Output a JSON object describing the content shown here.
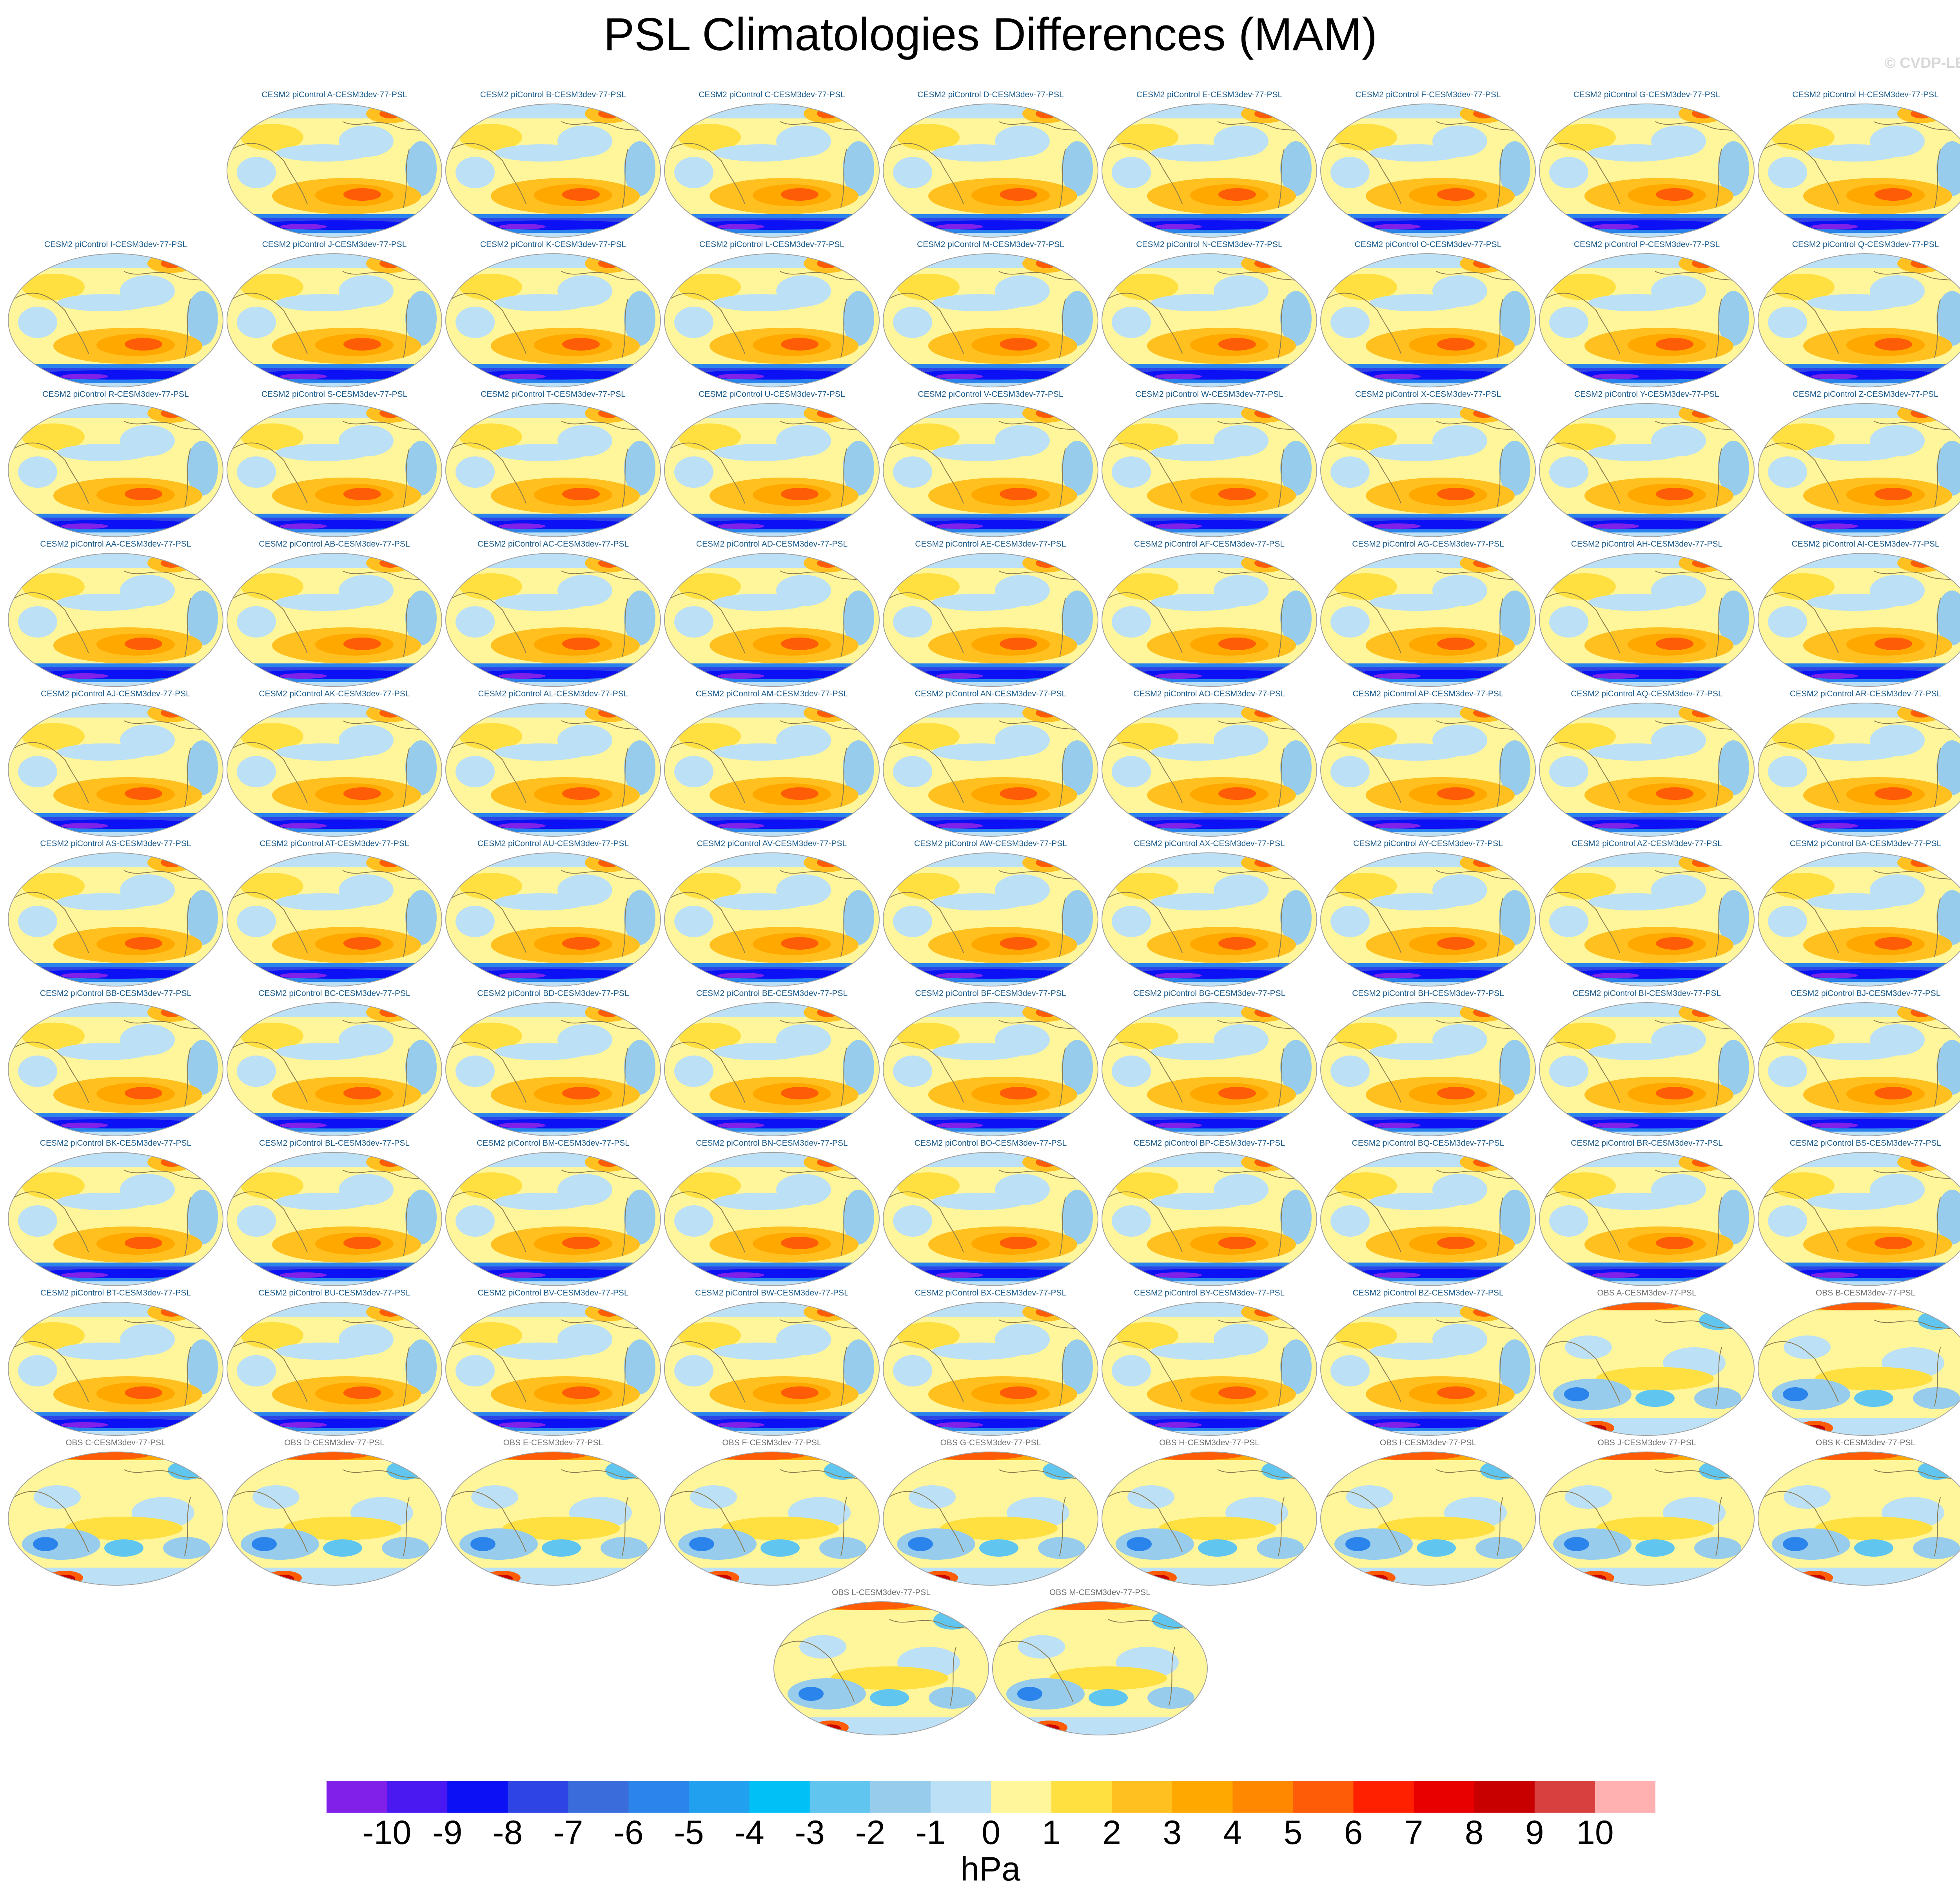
{
  "title": "PSL Climatologies Differences (MAM)",
  "copyright": "© CVDP-LE",
  "panel_suffix": "-CESM3dev-77-PSL",
  "rows": [
    [
      "CESM2 piControl A",
      "CESM2 piControl B",
      "CESM2 piControl C",
      "CESM2 piControl D",
      "CESM2 piControl E",
      "CESM2 piControl F",
      "CESM2 piControl G",
      "CESM2 piControl H"
    ],
    [
      "CESM2 piControl I",
      "CESM2 piControl J",
      "CESM2 piControl K",
      "CESM2 piControl L",
      "CESM2 piControl M",
      "CESM2 piControl N",
      "CESM2 piControl O",
      "CESM2 piControl P",
      "CESM2 piControl Q"
    ],
    [
      "CESM2 piControl R",
      "CESM2 piControl S",
      "CESM2 piControl T",
      "CESM2 piControl U",
      "CESM2 piControl V",
      "CESM2 piControl W",
      "CESM2 piControl X",
      "CESM2 piControl Y",
      "CESM2 piControl Z"
    ],
    [
      "CESM2 piControl AA",
      "CESM2 piControl AB",
      "CESM2 piControl AC",
      "CESM2 piControl AD",
      "CESM2 piControl AE",
      "CESM2 piControl AF",
      "CESM2 piControl AG",
      "CESM2 piControl AH",
      "CESM2 piControl AI"
    ],
    [
      "CESM2 piControl AJ",
      "CESM2 piControl AK",
      "CESM2 piControl AL",
      "CESM2 piControl AM",
      "CESM2 piControl AN",
      "CESM2 piControl AO",
      "CESM2 piControl AP",
      "CESM2 piControl AQ",
      "CESM2 piControl AR"
    ],
    [
      "CESM2 piControl AS",
      "CESM2 piControl AT",
      "CESM2 piControl AU",
      "CESM2 piControl AV",
      "CESM2 piControl AW",
      "CESM2 piControl AX",
      "CESM2 piControl AY",
      "CESM2 piControl AZ",
      "CESM2 piControl BA"
    ],
    [
      "CESM2 piControl BB",
      "CESM2 piControl BC",
      "CESM2 piControl BD",
      "CESM2 piControl BE",
      "CESM2 piControl BF",
      "CESM2 piControl BG",
      "CESM2 piControl BH",
      "CESM2 piControl BI",
      "CESM2 piControl BJ"
    ],
    [
      "CESM2 piControl BK",
      "CESM2 piControl BL",
      "CESM2 piControl BM",
      "CESM2 piControl BN",
      "CESM2 piControl BO",
      "CESM2 piControl BP",
      "CESM2 piControl BQ",
      "CESM2 piControl BR",
      "CESM2 piControl BS"
    ],
    [
      "CESM2 piControl BT",
      "CESM2 piControl BU",
      "CESM2 piControl BV",
      "CESM2 piControl BW",
      "CESM2 piControl BX",
      "CESM2 piControl BY",
      "CESM2 piControl BZ",
      "OBS A",
      "OBS B"
    ],
    [
      "OBS C",
      "OBS D",
      "OBS E",
      "OBS F",
      "OBS G",
      "OBS H",
      "OBS I",
      "OBS J",
      "OBS K"
    ],
    [
      "OBS L",
      "OBS M"
    ]
  ],
  "colors": {
    "title_model": "#1c5c8c",
    "title_obs": "#707070",
    "coast": "#8a7a50"
  },
  "colorbar": {
    "colors": [
      "#8020e8",
      "#4a18f0",
      "#0c10f4",
      "#2e44e4",
      "#3a6cdc",
      "#2a84ec",
      "#22a0f0",
      "#00c0f6",
      "#60c6f0",
      "#98ccec",
      "#bce0f6",
      "#fff59a",
      "#ffe040",
      "#ffc020",
      "#ffa800",
      "#ff8800",
      "#ff5c08",
      "#ff2000",
      "#e80000",
      "#c80000",
      "#d84040",
      "#ffb0b0"
    ],
    "labels": [
      "-10",
      "-9",
      "-8",
      "-7",
      "-6",
      "-5",
      "-4",
      "-3",
      "-2",
      "-1",
      "0",
      "1",
      "2",
      "3",
      "4",
      "5",
      "6",
      "7",
      "8",
      "9",
      "10"
    ],
    "units": "hPa"
  }
}
